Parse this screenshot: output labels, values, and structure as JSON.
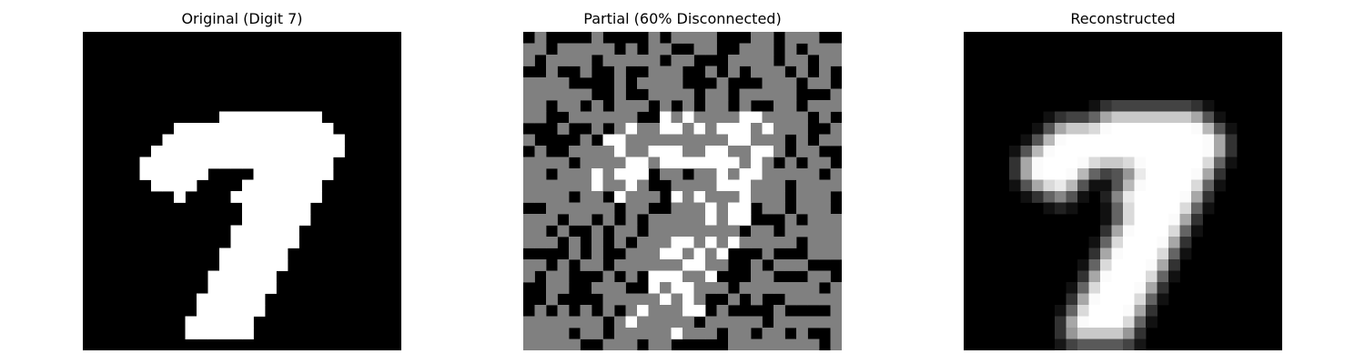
{
  "chart_data": [
    {
      "type": "heatmap",
      "title": "Original (Digit 7)",
      "grid": false,
      "axes": "off",
      "colormap": "gray",
      "rows": 28,
      "cols": 28,
      "value_range": [
        0,
        1
      ],
      "colors": {
        "low": "#000000",
        "high": "#ffffff"
      },
      "shapes": [
        {
          "type": "hline",
          "row": 7,
          "c0": 12,
          "c1": 20,
          "value": 1
        },
        {
          "type": "hline",
          "row": 8,
          "c0": 8,
          "c1": 21,
          "value": 1
        },
        {
          "type": "hline",
          "row": 9,
          "c0": 7,
          "c1": 22,
          "value": 1
        },
        {
          "type": "hline",
          "row": 10,
          "c0": 6,
          "c1": 22,
          "value": 1
        },
        {
          "type": "hline",
          "row": 11,
          "c0": 5,
          "c1": 21,
          "value": 1
        },
        {
          "type": "hline",
          "row": 12,
          "c0": 5,
          "c1": 10,
          "value": 1
        },
        {
          "type": "hline",
          "row": 12,
          "c0": 15,
          "c1": 21,
          "value": 1
        },
        {
          "type": "hline",
          "row": 13,
          "c0": 6,
          "c1": 9,
          "value": 1
        },
        {
          "type": "hline",
          "row": 13,
          "c0": 14,
          "c1": 20,
          "value": 1
        },
        {
          "type": "hline",
          "row": 14,
          "c0": 8,
          "c1": 8,
          "value": 1
        },
        {
          "type": "hline",
          "row": 14,
          "c0": 13,
          "c1": 20,
          "value": 1
        },
        {
          "type": "stroke",
          "r0": 15,
          "r1": 26,
          "c_start": 14,
          "c_end": 9,
          "width": 6,
          "value": 1
        }
      ]
    },
    {
      "type": "heatmap",
      "title": "Partial (60% Disconnected)",
      "grid": false,
      "axes": "off",
      "colormap": "gray",
      "rows": 28,
      "cols": 28,
      "value_range": [
        0,
        1
      ],
      "disconnected_fraction": 0.6,
      "disconnected_value": 0.5,
      "colors": {
        "low": "#000000",
        "mid": "#808080",
        "high": "#ffffff"
      }
    },
    {
      "type": "heatmap",
      "title": "Reconstructed",
      "grid": false,
      "axes": "off",
      "colormap": "gray",
      "rows": 28,
      "cols": 28,
      "value_range": [
        0,
        1
      ],
      "colors": {
        "low": "#000000",
        "high": "#ffffff"
      }
    }
  ]
}
